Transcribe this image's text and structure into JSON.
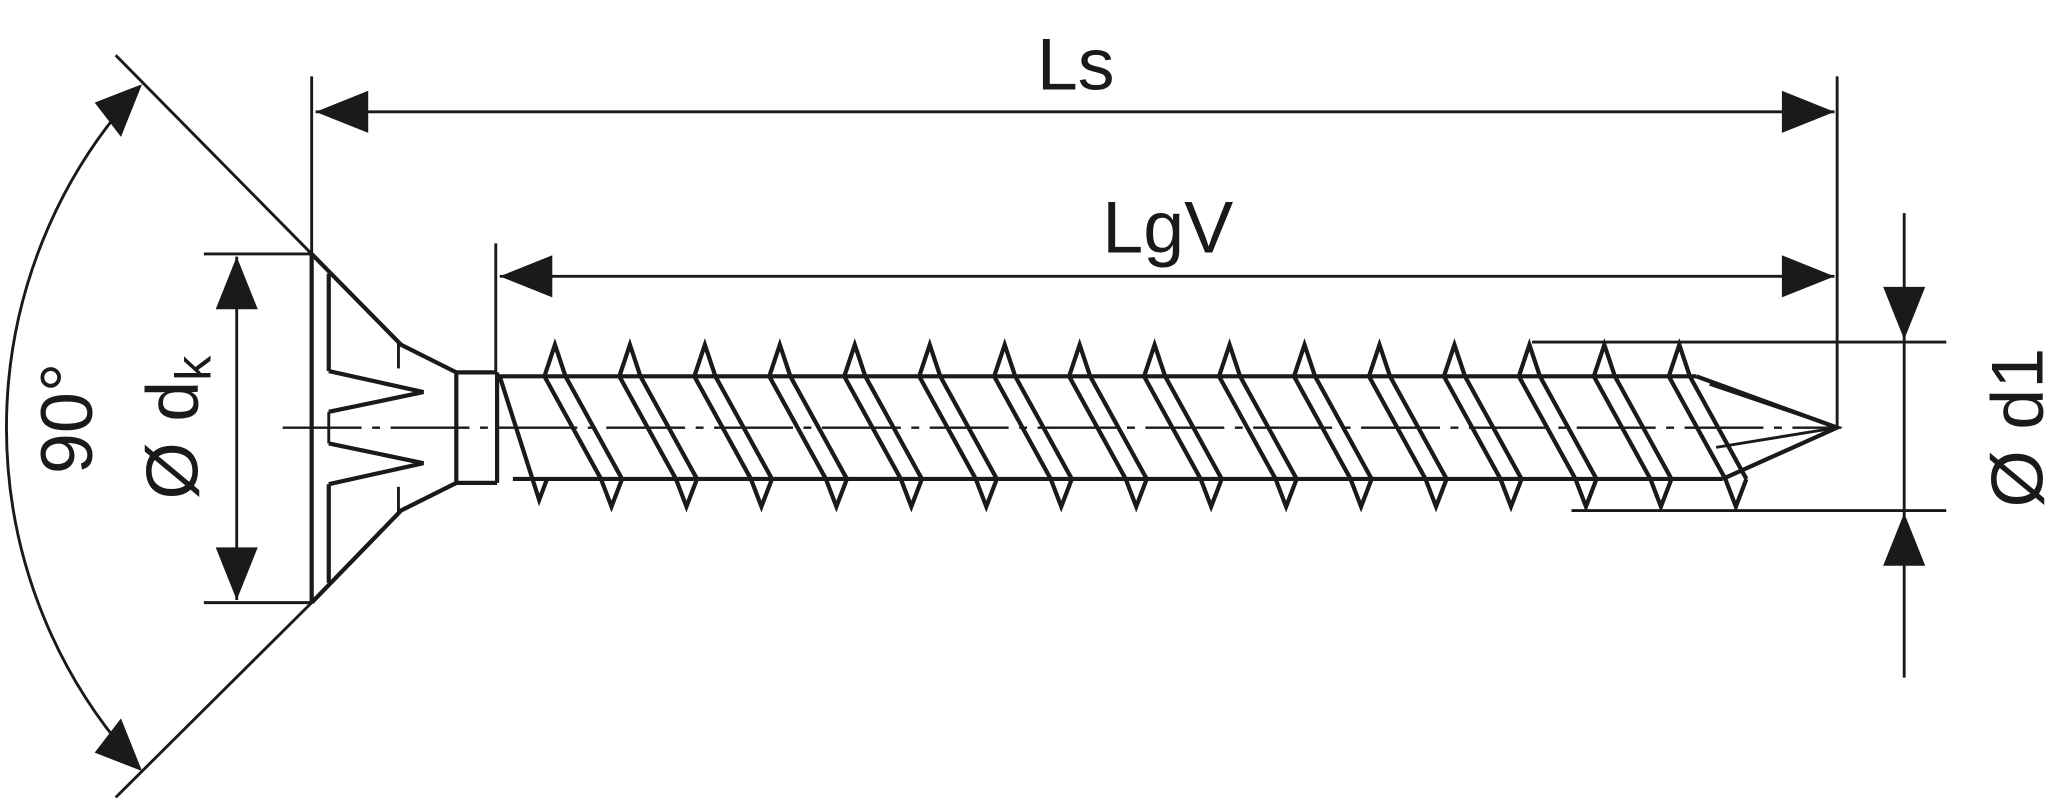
{
  "diagram": {
    "labels": {
      "screw_length": "Ls",
      "thread_length": "LgV",
      "thread_diameter": "Ø d1",
      "head_diameter": "Ø d",
      "head_diameter_subscript": "k",
      "head_angle": "90°"
    },
    "thread_count": 16,
    "line_color": "#1a1a1a"
  }
}
